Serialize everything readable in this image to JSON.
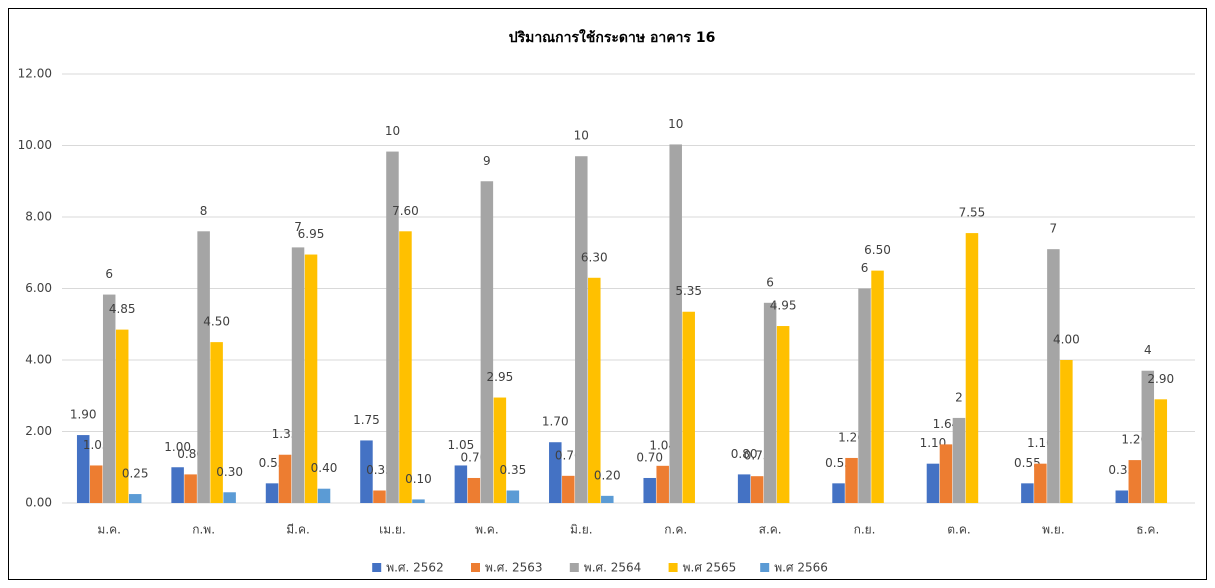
{
  "chart_data": {
    "type": "bar",
    "title": "ปริมาณการใช้กระดาษ อาคาร 16",
    "categories": [
      "ม.ค.",
      "ก.พ.",
      "มี.ค.",
      "เม.ย.",
      "พ.ค.",
      "มิ.ย.",
      "ก.ค.",
      "ส.ค.",
      "ก.ย.",
      "ต.ค.",
      "พ.ย.",
      "ธ.ค."
    ],
    "series": [
      {
        "name": "พ.ศ. 2562",
        "color": "#4472c4",
        "values": [
          1.9,
          1.0,
          0.55,
          1.75,
          1.05,
          1.7,
          0.7,
          0.8,
          0.55,
          1.1,
          0.55,
          0.35
        ],
        "value_labels": [
          "1.90",
          "1.00",
          "0.55",
          "1.75",
          "1.05",
          "1.70",
          "0.70",
          "0.80",
          "0.55",
          "1.10",
          "0.55",
          "0.35"
        ]
      },
      {
        "name": "พ.ศ. 2563",
        "color": "#ed7d31",
        "values": [
          1.05,
          0.8,
          1.35,
          0.35,
          0.7,
          0.76,
          1.04,
          0.75,
          1.26,
          1.64,
          1.1,
          1.2
        ],
        "value_labels": [
          "1.05",
          "0.80",
          "1.35",
          "0.35",
          "0.70",
          "0.76",
          "1.04",
          "0.75",
          "1.26",
          "1.64",
          "1.10",
          "1.20"
        ]
      },
      {
        "name": "พ.ศ. 2564",
        "color": "#a5a5a5",
        "values": [
          5.83,
          7.6,
          7.15,
          9.83,
          9.0,
          9.7,
          10.03,
          5.6,
          6.0,
          2.38,
          7.1,
          3.7
        ],
        "value_labels": [
          "6",
          "8",
          "7",
          "10",
          "9",
          "10",
          "10",
          "6",
          "6",
          "2",
          "7",
          "4"
        ]
      },
      {
        "name": "พ.ศ 2565",
        "color": "#ffc000",
        "values": [
          4.85,
          4.5,
          6.95,
          7.6,
          2.95,
          6.3,
          5.35,
          4.95,
          6.5,
          7.55,
          4.0,
          2.9
        ],
        "value_labels": [
          "4.85",
          "4.50",
          "6.95",
          "7.60",
          "2.95",
          "6.30",
          "5.35",
          "4.95",
          "6.50",
          "7.55",
          "4.00",
          "2.90"
        ]
      },
      {
        "name": "พ.ศ 2566",
        "color": "#5b9bd5",
        "values": [
          0.25,
          0.3,
          0.4,
          0.1,
          0.35,
          0.2,
          null,
          null,
          null,
          null,
          null,
          null
        ],
        "value_labels": [
          "0.25",
          "0.30",
          "0.40",
          "0.10",
          "0.35",
          "0.20",
          null,
          null,
          null,
          null,
          null,
          null
        ]
      }
    ],
    "ylim": [
      0,
      12
    ],
    "yticks": [
      {
        "value": 0,
        "label": "0.00"
      },
      {
        "value": 2,
        "label": "2.00"
      },
      {
        "value": 4,
        "label": "4.00"
      },
      {
        "value": 6,
        "label": "6.00"
      },
      {
        "value": 8,
        "label": "8.00"
      },
      {
        "value": 10,
        "label": "10.00"
      },
      {
        "value": 12,
        "label": "12.00"
      }
    ],
    "grid": true,
    "legend": "bottom"
  }
}
